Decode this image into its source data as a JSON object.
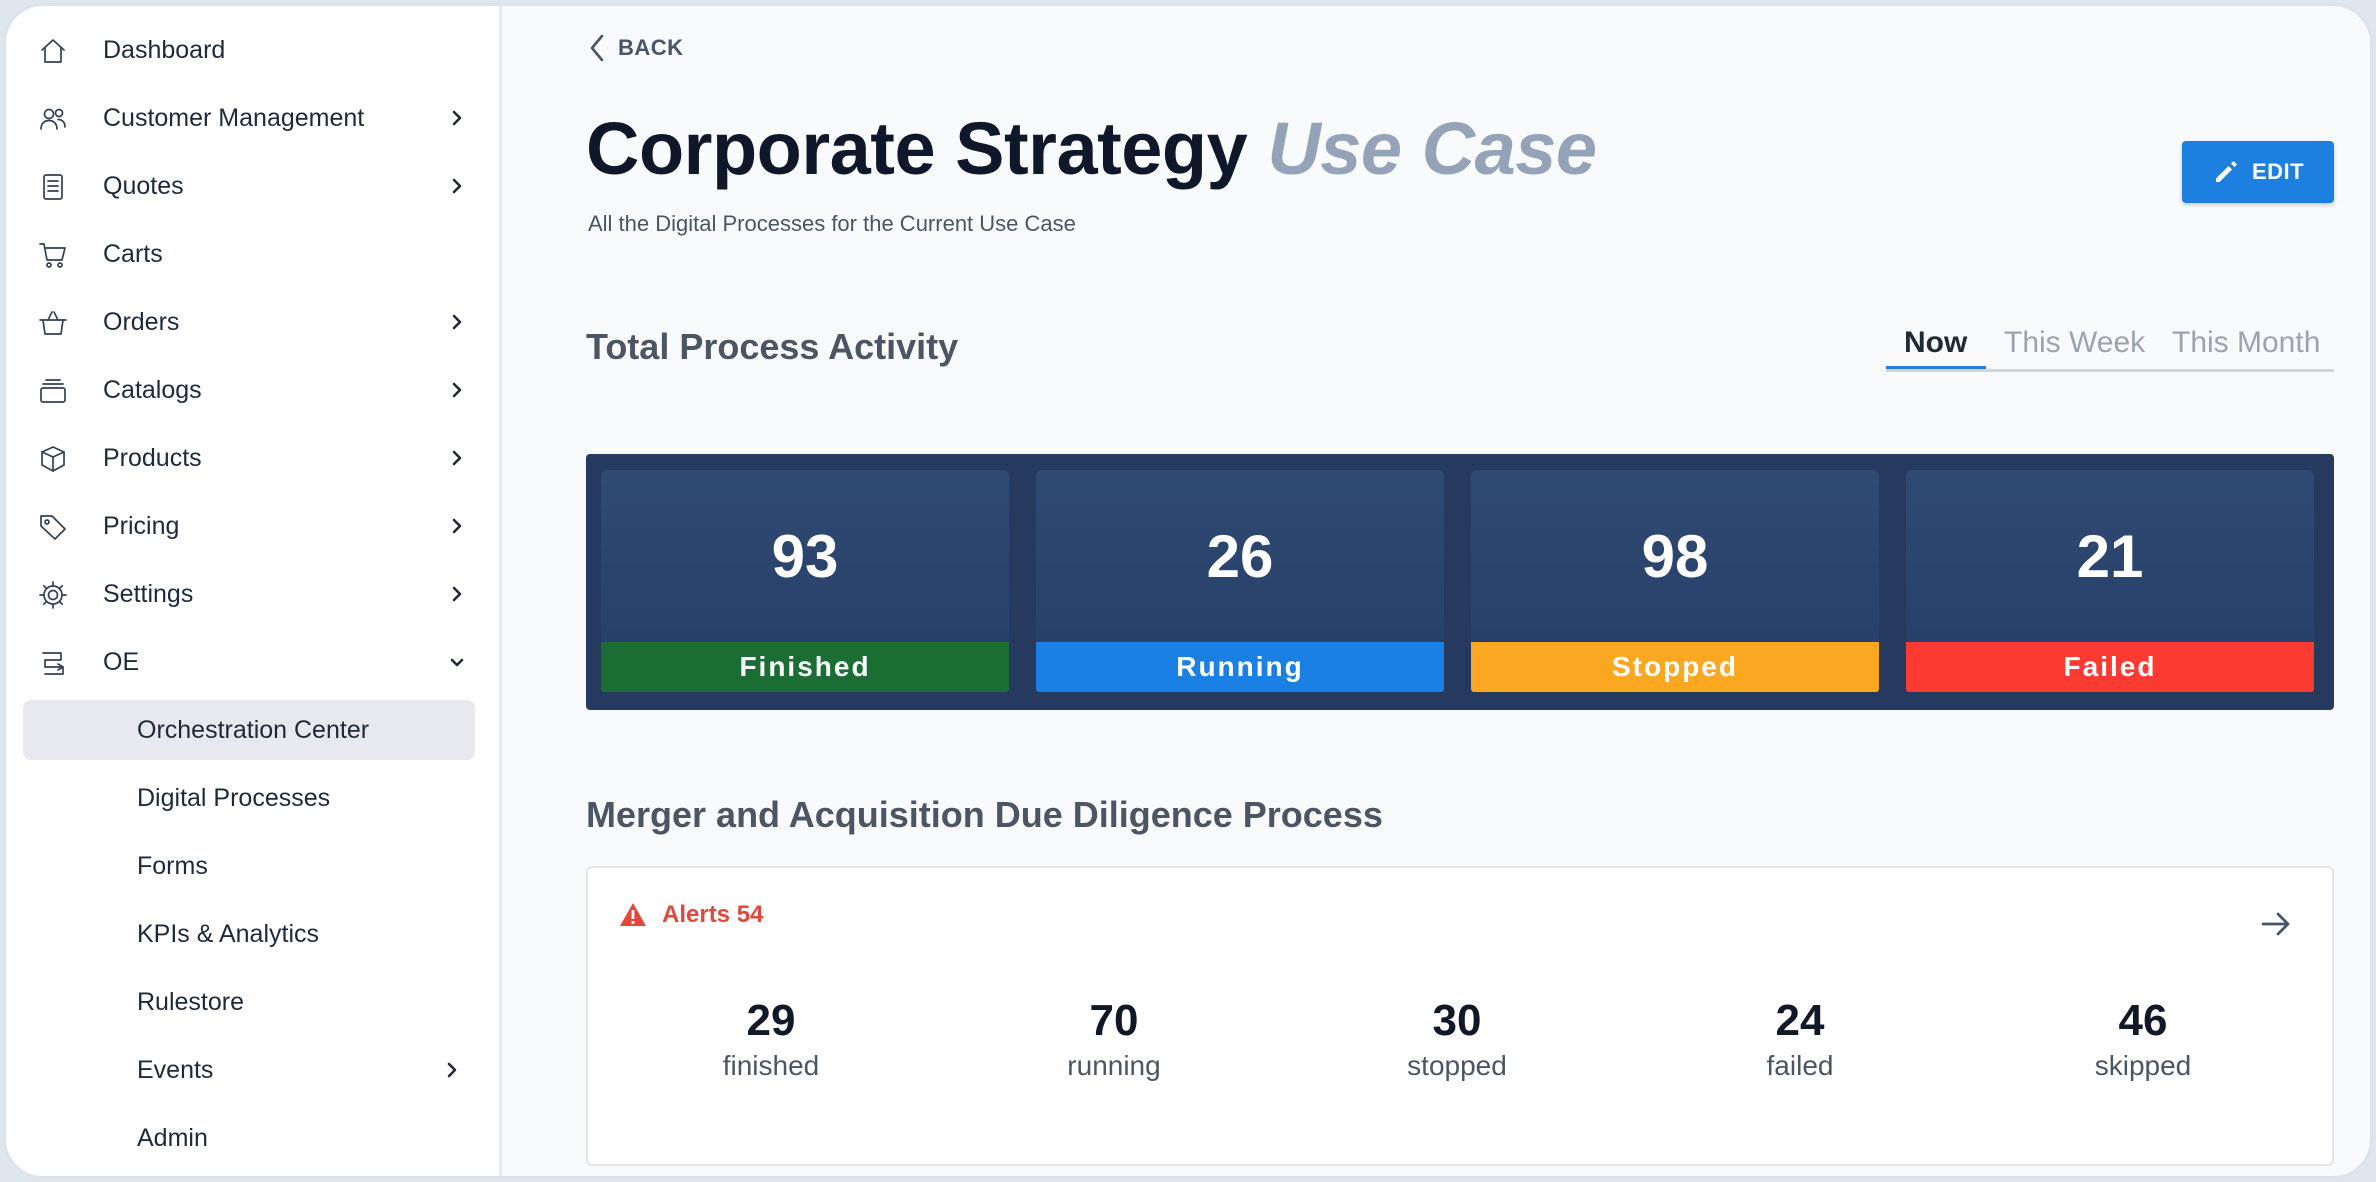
{
  "sidebar": {
    "items": [
      {
        "label": "Dashboard",
        "icon": "home-icon"
      },
      {
        "label": "Customer Management",
        "icon": "users-icon"
      },
      {
        "label": "Quotes",
        "icon": "document-icon"
      },
      {
        "label": "Carts",
        "icon": "cart-icon"
      },
      {
        "label": "Orders",
        "icon": "basket-icon"
      },
      {
        "label": "Catalogs",
        "icon": "stack-icon"
      },
      {
        "label": "Products",
        "icon": "box-icon"
      },
      {
        "label": "Pricing",
        "icon": "tag-icon"
      },
      {
        "label": "Settings",
        "icon": "gear-icon"
      },
      {
        "label": "OE",
        "icon": "flow-icon"
      }
    ],
    "subitems": [
      {
        "label": "Orchestration Center",
        "active": true
      },
      {
        "label": "Digital Processes"
      },
      {
        "label": "Forms"
      },
      {
        "label": "KPIs & Analytics"
      },
      {
        "label": "Rulestore"
      },
      {
        "label": "Events"
      },
      {
        "label": "Admin"
      }
    ]
  },
  "header": {
    "back_label": "BACK",
    "title": "Corporate Strategy",
    "title_accent": "Use Case",
    "subtitle": "All the Digital Processes for the Current Use Case",
    "edit_label": "EDIT"
  },
  "activity": {
    "title": "Total Process Activity",
    "tabs": [
      {
        "label": "Now",
        "active": true
      },
      {
        "label": "This Week"
      },
      {
        "label": "This Month"
      }
    ],
    "stats": [
      {
        "value": "93",
        "label": "Finished",
        "color": "#1a6e34"
      },
      {
        "value": "26",
        "label": "Running",
        "color": "#1b80e4"
      },
      {
        "value": "98",
        "label": "Stopped",
        "color": "#fca722"
      },
      {
        "value": "21",
        "label": "Failed",
        "color": "#fb3a32"
      }
    ]
  },
  "process": {
    "title": "Merger and Acquisition Due Diligence Process",
    "alerts_label": "Alerts 54",
    "metrics": [
      {
        "value": "29",
        "label": "finished"
      },
      {
        "value": "70",
        "label": "running"
      },
      {
        "value": "30",
        "label": "stopped"
      },
      {
        "value": "24",
        "label": "failed"
      },
      {
        "value": "46",
        "label": "skipped"
      }
    ]
  },
  "colors": {
    "accent": "#1d7fe0",
    "panel": "#263a5f",
    "alert": "#e0483c"
  }
}
